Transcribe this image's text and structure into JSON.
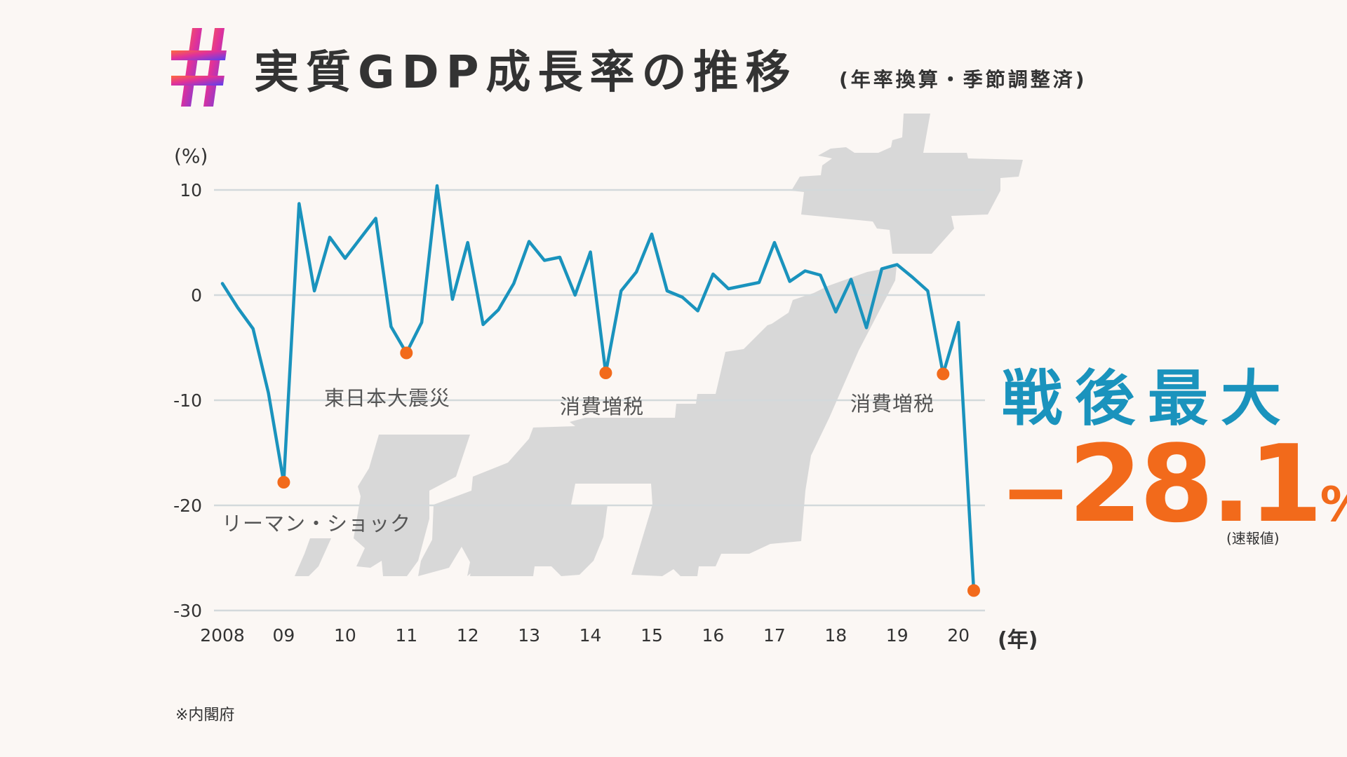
{
  "header": {
    "title": "実質GDP成長率の推移",
    "subtitle": "(年率換算・季節調整済)"
  },
  "colors": {
    "line": "#1a93bd",
    "marker": "#f26a1b",
    "gridline": "#d3d9db",
    "map_silhouette": "#d8d8d8",
    "headline": "#1a93bd",
    "highlight_value": "#f26a1b"
  },
  "chart_data": {
    "type": "line",
    "ylabel": "(%)",
    "xlabel": "(年)",
    "ylim": [
      -30,
      10
    ],
    "yticks": [
      "10",
      "0",
      "-10",
      "-20",
      "-30"
    ],
    "xticks": [
      {
        "year": 2008,
        "label": "2008"
      },
      {
        "year": 2009,
        "label": "09"
      },
      {
        "year": 2010,
        "label": "10"
      },
      {
        "year": 2011,
        "label": "11"
      },
      {
        "year": 2012,
        "label": "12"
      },
      {
        "year": 2013,
        "label": "13"
      },
      {
        "year": 2014,
        "label": "14"
      },
      {
        "year": 2015,
        "label": "15"
      },
      {
        "year": 2016,
        "label": "16"
      },
      {
        "year": 2017,
        "label": "17"
      },
      {
        "year": 2018,
        "label": "18"
      },
      {
        "year": 2019,
        "label": "19"
      },
      {
        "year": 2020,
        "label": "20"
      }
    ],
    "grid": true,
    "series": [
      {
        "points": [
          [
            2008.0,
            1.1
          ],
          [
            2008.25,
            -1.2
          ],
          [
            2008.5,
            -3.2
          ],
          [
            2008.75,
            -9.3
          ],
          [
            2009.0,
            -17.8
          ],
          [
            2009.25,
            8.7
          ],
          [
            2009.5,
            0.4
          ],
          [
            2009.75,
            5.5
          ],
          [
            2010.0,
            3.5
          ],
          [
            2010.25,
            5.4
          ],
          [
            2010.5,
            7.3
          ],
          [
            2010.75,
            -3.0
          ],
          [
            2011.0,
            -5.5
          ],
          [
            2011.25,
            -2.6
          ],
          [
            2011.5,
            10.4
          ],
          [
            2011.75,
            -0.4
          ],
          [
            2012.0,
            5.0
          ],
          [
            2012.25,
            -2.8
          ],
          [
            2012.5,
            -1.4
          ],
          [
            2012.75,
            1.1
          ],
          [
            2013.0,
            5.1
          ],
          [
            2013.25,
            3.3
          ],
          [
            2013.5,
            3.6
          ],
          [
            2013.75,
            0.0
          ],
          [
            2014.0,
            4.1
          ],
          [
            2014.25,
            -7.4
          ],
          [
            2014.5,
            0.4
          ],
          [
            2014.75,
            2.2
          ],
          [
            2015.0,
            5.8
          ],
          [
            2015.25,
            0.4
          ],
          [
            2015.5,
            -0.2
          ],
          [
            2015.75,
            -1.5
          ],
          [
            2016.0,
            2.0
          ],
          [
            2016.25,
            0.6
          ],
          [
            2016.5,
            0.9
          ],
          [
            2016.75,
            1.2
          ],
          [
            2017.0,
            5.0
          ],
          [
            2017.25,
            1.3
          ],
          [
            2017.5,
            2.3
          ],
          [
            2017.75,
            1.9
          ],
          [
            2018.0,
            -1.6
          ],
          [
            2018.25,
            1.5
          ],
          [
            2018.5,
            -3.1
          ],
          [
            2018.75,
            2.5
          ],
          [
            2019.0,
            2.9
          ],
          [
            2019.25,
            1.7
          ],
          [
            2019.5,
            0.4
          ],
          [
            2019.75,
            -7.5
          ],
          [
            2020.0,
            -2.6
          ],
          [
            2020.25,
            -28.1
          ]
        ]
      }
    ],
    "highlights": [
      {
        "x": 2009.0,
        "y": -17.8,
        "label": "リーマン・ショック"
      },
      {
        "x": 2011.0,
        "y": -5.5,
        "label": "東日本大震災"
      },
      {
        "x": 2014.25,
        "y": -7.4,
        "label": "消費増税"
      },
      {
        "x": 2019.75,
        "y": -7.5,
        "label": "消費増税"
      },
      {
        "x": 2020.25,
        "y": -28.1,
        "label": ""
      }
    ]
  },
  "callout": {
    "headline": "戦後最大",
    "value": "28.1",
    "sign": "−",
    "unit": "%",
    "note": "(速報値)"
  },
  "footer": {
    "source": "※内閣府"
  }
}
